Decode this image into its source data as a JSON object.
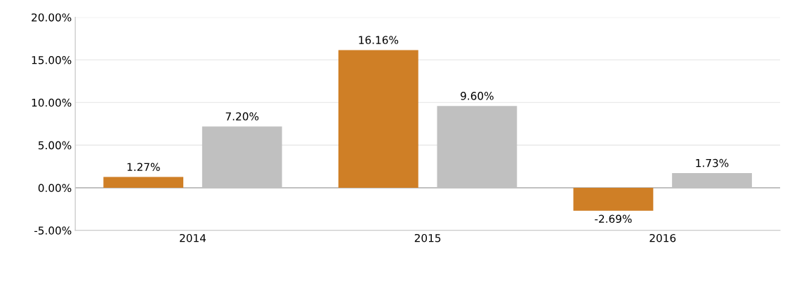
{
  "chart_data": {
    "type": "bar",
    "categories": [
      "2014",
      "2015",
      "2016"
    ],
    "series": [
      {
        "color": "#cf7f26",
        "values": [
          1.27,
          16.16,
          -2.69
        ],
        "value_labels": [
          "1.27%",
          "16.16%",
          "-2.69%"
        ]
      },
      {
        "color": "#c0c0c0",
        "values": [
          7.2,
          9.6,
          1.73
        ],
        "value_labels": [
          "7.20%",
          "9.60%",
          "1.73%"
        ]
      }
    ],
    "ylim": [
      -5,
      20
    ],
    "yticks": [
      {
        "value": -5,
        "label": "-5.00%"
      },
      {
        "value": 0,
        "label": "0.00%"
      },
      {
        "value": 5,
        "label": "5.00%"
      },
      {
        "value": 10,
        "label": "10.00%"
      },
      {
        "value": 15,
        "label": "15.00%"
      },
      {
        "value": 20,
        "label": "20.00%"
      }
    ],
    "grid": "y"
  }
}
